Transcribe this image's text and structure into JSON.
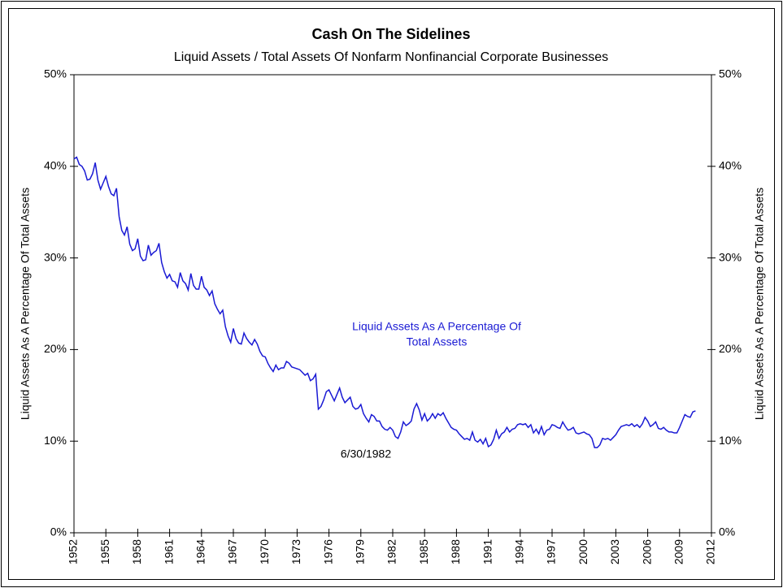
{
  "chart_data": {
    "type": "line",
    "title": "Cash On The Sidelines",
    "subtitle": "Liquid Assets / Total Assets Of Nonfarm Nonfinancial Corporate Businesses",
    "y_label": "Liquid Assets As A Percentage Of Total Assets",
    "y2_label": "Liquid Assets As A Percentage Of Total Assets",
    "annotations": [
      "Liquid Assets As A Percentage Of",
      "Total Assets",
      "6/30/1982"
    ],
    "xlim": [
      1952,
      2012
    ],
    "xticks": [
      1952,
      1955,
      1958,
      1961,
      1964,
      1967,
      1970,
      1973,
      1976,
      1979,
      1982,
      1985,
      1988,
      1991,
      1994,
      1997,
      2000,
      2003,
      2006,
      2009,
      2012
    ],
    "ylim": [
      0,
      50
    ],
    "yticks": [
      {
        "value": 0,
        "label": "0%"
      },
      {
        "value": 10,
        "label": "10%"
      },
      {
        "value": 20,
        "label": "20%"
      },
      {
        "value": 30,
        "label": "30%"
      },
      {
        "value": 40,
        "label": "40%"
      },
      {
        "value": 50,
        "label": "50%"
      }
    ],
    "y2lim": [
      0,
      50
    ],
    "y2ticks": [
      {
        "value": 0,
        "label": "0%"
      },
      {
        "value": 10,
        "label": "10%"
      },
      {
        "value": 20,
        "label": "20%"
      },
      {
        "value": 30,
        "label": "30%"
      },
      {
        "value": 40,
        "label": "40%"
      },
      {
        "value": 50,
        "label": "50%"
      }
    ],
    "x": [
      1952,
      1952.25,
      1952.5,
      1952.75,
      1953,
      1953.25,
      1953.5,
      1953.75,
      1954,
      1954.25,
      1954.5,
      1954.75,
      1955,
      1955.25,
      1955.5,
      1955.75,
      1956,
      1956.25,
      1956.5,
      1956.75,
      1957,
      1957.25,
      1957.5,
      1957.75,
      1958,
      1958.25,
      1958.5,
      1958.75,
      1959,
      1959.25,
      1959.5,
      1959.75,
      1960,
      1960.25,
      1960.5,
      1960.75,
      1961,
      1961.25,
      1961.5,
      1961.75,
      1962,
      1962.25,
      1962.5,
      1962.75,
      1963,
      1963.25,
      1963.5,
      1963.75,
      1964,
      1964.25,
      1964.5,
      1964.75,
      1965,
      1965.25,
      1965.5,
      1965.75,
      1966,
      1966.25,
      1966.5,
      1966.75,
      1967,
      1967.25,
      1967.5,
      1967.75,
      1968,
      1968.25,
      1968.5,
      1968.75,
      1969,
      1969.25,
      1969.5,
      1969.75,
      1970,
      1970.25,
      1970.5,
      1970.75,
      1971,
      1971.25,
      1971.5,
      1971.75,
      1972,
      1972.25,
      1972.5,
      1972.75,
      1973,
      1973.25,
      1973.5,
      1973.75,
      1974,
      1974.25,
      1974.5,
      1974.75,
      1975,
      1975.25,
      1975.5,
      1975.75,
      1976,
      1976.25,
      1976.5,
      1976.75,
      1977,
      1977.25,
      1977.5,
      1977.75,
      1978,
      1978.25,
      1978.5,
      1978.75,
      1979,
      1979.25,
      1979.5,
      1979.75,
      1980,
      1980.25,
      1980.5,
      1980.75,
      1981,
      1981.25,
      1981.5,
      1981.75,
      1982,
      1982.25,
      1982.5,
      1982.75,
      1983,
      1983.25,
      1983.5,
      1983.75,
      1984,
      1984.25,
      1984.5,
      1984.75,
      1985,
      1985.25,
      1985.5,
      1985.75,
      1986,
      1986.25,
      1986.5,
      1986.75,
      1987,
      1987.25,
      1987.5,
      1987.75,
      1988,
      1988.25,
      1988.5,
      1988.75,
      1989,
      1989.25,
      1989.5,
      1989.75,
      1990,
      1990.25,
      1990.5,
      1990.75,
      1991,
      1991.25,
      1991.5,
      1991.75,
      1992,
      1992.25,
      1992.5,
      1992.75,
      1993,
      1993.25,
      1993.5,
      1993.75,
      1994,
      1994.25,
      1994.5,
      1994.75,
      1995,
      1995.25,
      1995.5,
      1995.75,
      1996,
      1996.25,
      1996.5,
      1996.75,
      1997,
      1997.25,
      1997.5,
      1997.75,
      1998,
      1998.25,
      1998.5,
      1998.75,
      1999,
      1999.25,
      1999.5,
      1999.75,
      2000,
      2000.25,
      2000.5,
      2000.75,
      2001,
      2001.25,
      2001.5,
      2001.75,
      2002,
      2002.25,
      2002.5,
      2002.75,
      2003,
      2003.25,
      2003.5,
      2003.75,
      2004,
      2004.25,
      2004.5,
      2004.75,
      2005,
      2005.25,
      2005.5,
      2005.75,
      2006,
      2006.25,
      2006.5,
      2006.75,
      2007,
      2007.25,
      2007.5,
      2007.75,
      2008,
      2008.25,
      2008.5,
      2008.75,
      2009,
      2009.25,
      2009.5,
      2009.75,
      2010,
      2010.25,
      2010.5
    ],
    "series": [
      {
        "color": "#1a1ad4",
        "values": [
          40.8,
          41,
          40.2,
          40,
          39.5,
          38.5,
          38.6,
          39.2,
          40.4,
          38.5,
          37.5,
          38.2,
          38.9,
          37.8,
          37,
          36.8,
          37.6,
          34.5,
          33,
          32.5,
          33.4,
          31.5,
          30.8,
          31,
          32.1,
          30.2,
          29.7,
          29.8,
          31.4,
          30.3,
          30.6,
          30.8,
          31.6,
          29.5,
          28.5,
          27.8,
          28.2,
          27.5,
          27.4,
          26.8,
          28.4,
          27.5,
          27.2,
          26.5,
          28.3,
          27,
          26.6,
          26.6,
          28,
          26.8,
          26.5,
          25.9,
          26.4,
          25,
          24.4,
          23.9,
          24.3,
          22.5,
          21.5,
          20.8,
          22.3,
          21.2,
          20.7,
          20.6,
          21.8,
          21.2,
          20.8,
          20.5,
          21.1,
          20.6,
          19.8,
          19.3,
          19.2,
          18.5,
          18,
          17.6,
          18.3,
          17.8,
          18,
          18,
          18.7,
          18.5,
          18.1,
          18,
          17.9,
          17.8,
          17.5,
          17.2,
          17.4,
          16.6,
          16.8,
          17.3,
          13.5,
          13.8,
          14.5,
          15.4,
          15.6,
          15,
          14.4,
          15.1,
          15.8,
          14.8,
          14.2,
          14.5,
          14.8,
          13.8,
          13.5,
          13.6,
          14,
          13,
          12.5,
          12.1,
          12.9,
          12.7,
          12.2,
          12.2,
          11.6,
          11.3,
          11.2,
          11.5,
          11.2,
          10.5,
          10.3,
          11,
          12.1,
          11.7,
          11.9,
          12.2,
          13.5,
          14.1,
          13.4,
          12.3,
          13,
          12.2,
          12.5,
          13,
          12.5,
          13,
          12.8,
          13.1,
          12.5,
          12,
          11.5,
          11.3,
          11.2,
          10.8,
          10.5,
          10.2,
          10.3,
          10.1,
          11,
          10.1,
          9.9,
          10.2,
          9.7,
          10.3,
          9.4,
          9.6,
          10.2,
          11.2,
          10.3,
          10.8,
          11,
          11.5,
          11,
          11.3,
          11.4,
          11.8,
          11.9,
          11.8,
          11.9,
          11.5,
          11.8,
          10.9,
          11.3,
          10.8,
          11.6,
          10.7,
          11.2,
          11.3,
          11.8,
          11.7,
          11.5,
          11.4,
          12.1,
          11.6,
          11.2,
          11.3,
          11.5,
          10.9,
          10.8,
          10.9,
          11,
          10.8,
          10.7,
          10.3,
          9.3,
          9.3,
          9.6,
          10.3,
          10.2,
          10.3,
          10.1,
          10.4,
          10.7,
          11.2,
          11.6,
          11.7,
          11.8,
          11.7,
          11.9,
          11.6,
          11.8,
          11.5,
          11.9,
          12.6,
          12.2,
          11.6,
          11.8,
          12.1,
          11.4,
          11.3,
          11.5,
          11.2,
          11,
          11,
          10.9,
          10.9,
          11.5,
          12.2,
          12.9,
          12.7,
          12.6,
          13.2,
          13.3
        ]
      }
    ]
  }
}
